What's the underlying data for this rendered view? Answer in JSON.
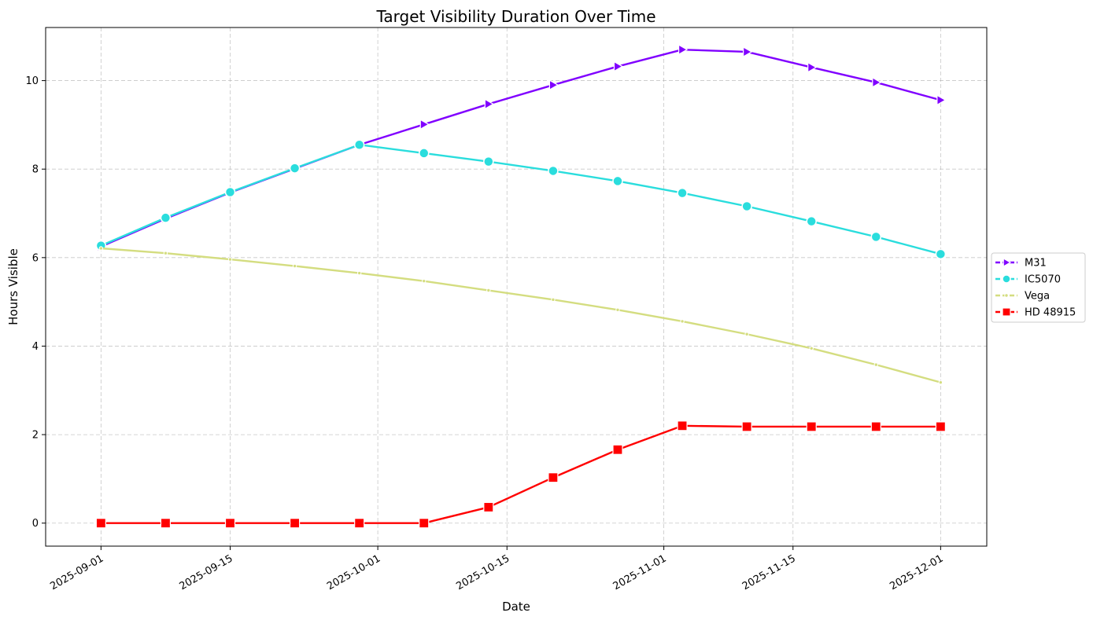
{
  "chart_data": {
    "type": "line",
    "title": "Target Visibility Duration Over Time",
    "xlabel": "Date",
    "ylabel": "Hours Visible",
    "xlim": [
      "2025-08-26",
      "2025-12-06"
    ],
    "ylim": [
      -0.52,
      11.2
    ],
    "x_ticks": [
      "2025-09-01",
      "2025-09-15",
      "2025-10-01",
      "2025-10-15",
      "2025-11-01",
      "2025-11-15",
      "2025-12-01"
    ],
    "y_ticks": [
      0,
      2,
      4,
      6,
      8,
      10
    ],
    "grid": true,
    "legend_placement": "center-right outside",
    "x": [
      "2025-09-01",
      "2025-09-08",
      "2025-09-15",
      "2025-09-22",
      "2025-09-29",
      "2025-10-06",
      "2025-10-13",
      "2025-10-20",
      "2025-10-27",
      "2025-11-03",
      "2025-11-10",
      "2025-11-17",
      "2025-11-24",
      "2025-12-01"
    ],
    "series": [
      {
        "name": "M31",
        "color": "#8000ff",
        "marker": "triangle-right",
        "dashed": true,
        "values": [
          6.25,
          6.88,
          7.47,
          8.01,
          8.55,
          9.01,
          9.47,
          9.9,
          10.32,
          10.7,
          10.65,
          10.3,
          9.96,
          9.56
        ]
      },
      {
        "name": "IC5070",
        "color": "#2adddd",
        "marker": "circle",
        "dashed": true,
        "values": [
          6.27,
          6.9,
          7.48,
          8.02,
          8.55,
          8.36,
          8.17,
          7.96,
          7.73,
          7.46,
          7.16,
          6.82,
          6.47,
          6.08
        ]
      },
      {
        "name": "Vega",
        "color": "#d4dd80",
        "marker": "point",
        "dashed": true,
        "values": [
          6.21,
          6.1,
          5.96,
          5.81,
          5.65,
          5.47,
          5.26,
          5.05,
          4.82,
          4.56,
          4.27,
          3.95,
          3.58,
          3.18
        ]
      },
      {
        "name": "HD 48915",
        "color": "#ff0000",
        "marker": "square",
        "dashed": true,
        "values": [
          0,
          0,
          0,
          0,
          0,
          0,
          0.36,
          1.03,
          1.66,
          2.2,
          2.18,
          2.18,
          2.18,
          2.18
        ]
      }
    ]
  }
}
